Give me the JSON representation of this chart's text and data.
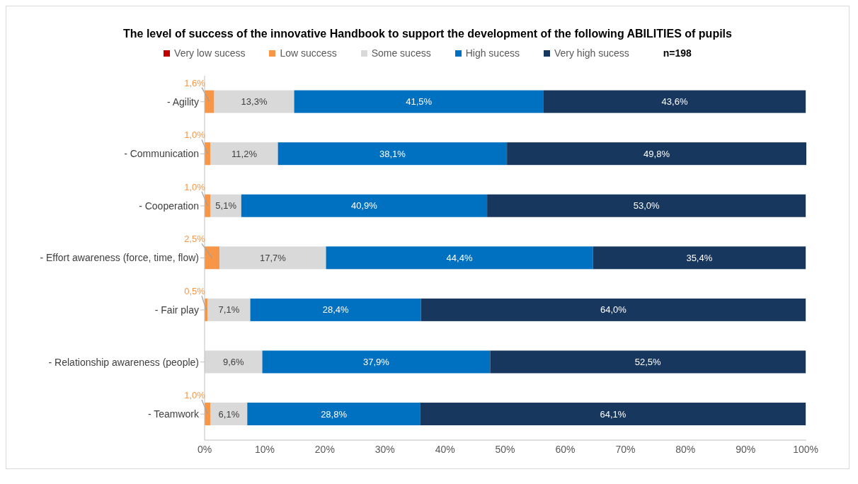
{
  "chart_data": {
    "type": "bar",
    "orientation": "horizontal",
    "stacked": true,
    "title": "The level of success of the innovative Handbook to support the development of the following ABILITIES of pupils",
    "categories": [
      "- Agility",
      "- Communication",
      "- Cooperation",
      "- Effort awareness (force, time, flow)",
      "- Fair play",
      "- Relationship awareness (people)",
      "- Teamwork"
    ],
    "series": [
      {
        "name": "Very low sucess",
        "color": "#c00000",
        "values": [
          0,
          0,
          0,
          0,
          0,
          0,
          0
        ],
        "value_labels": [
          null,
          null,
          null,
          null,
          null,
          null,
          null
        ]
      },
      {
        "name": "Low success",
        "color": "#f79646",
        "values": [
          1.6,
          1.0,
          1.0,
          2.5,
          0.5,
          0,
          1.0
        ],
        "value_labels": [
          "1,6%",
          "1,0%",
          "1,0%",
          "2,5%",
          "0,5%",
          null,
          "1,0%"
        ]
      },
      {
        "name": "Some sucess",
        "color": "#d9d9d9",
        "values": [
          13.3,
          11.2,
          5.1,
          17.7,
          7.1,
          9.6,
          6.1
        ],
        "value_labels": [
          "13,3%",
          "11,2%",
          "5,1%",
          "17,7%",
          "7,1%",
          "9,6%",
          "6,1%"
        ]
      },
      {
        "name": "High sucess",
        "color": "#0070c0",
        "values": [
          41.5,
          38.1,
          40.9,
          44.4,
          28.4,
          37.9,
          28.8
        ],
        "value_labels": [
          "41,5%",
          "38,1%",
          "40,9%",
          "44,4%",
          "28,4%",
          "37,9%",
          "28,8%"
        ]
      },
      {
        "name": "Very high sucess",
        "color": "#17375e",
        "values": [
          43.6,
          49.8,
          53.0,
          35.4,
          64.0,
          52.5,
          64.1
        ],
        "value_labels": [
          "43,6%",
          "49,8%",
          "53,0%",
          "35,4%",
          "64,0%",
          "52,5%",
          "64,1%"
        ]
      }
    ],
    "xlim": [
      0,
      100
    ],
    "xticks": [
      {
        "value": 0,
        "label": "0%"
      },
      {
        "value": 10,
        "label": "10%"
      },
      {
        "value": 20,
        "label": "20%"
      },
      {
        "value": 30,
        "label": "30%"
      },
      {
        "value": 40,
        "label": "40%"
      },
      {
        "value": 50,
        "label": "50%"
      },
      {
        "value": 60,
        "label": "60%"
      },
      {
        "value": 70,
        "label": "70%"
      },
      {
        "value": 80,
        "label": "80%"
      },
      {
        "value": 90,
        "label": "90%"
      },
      {
        "value": 100,
        "label": "100%"
      }
    ],
    "grid": false,
    "legend": "top",
    "annotations": [
      "n=198"
    ]
  }
}
